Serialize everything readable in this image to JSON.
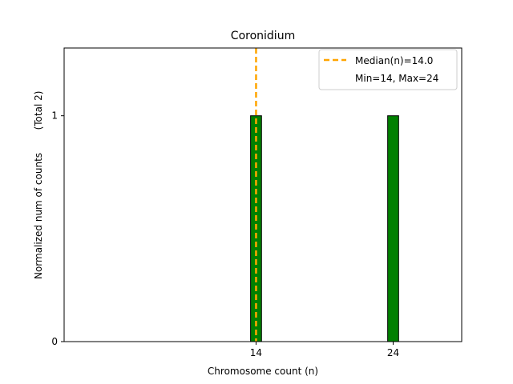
{
  "chart_data": {
    "type": "bar",
    "title": "Coronidium",
    "xlabel": "Chromosome count (n)",
    "ylabel": "Normalized num of counts",
    "ylabel_total": "(Total 2)",
    "x": [
      14,
      24
    ],
    "values": [
      1,
      1
    ],
    "bar_width": 0.8,
    "bar_color": "#008000",
    "bar_edge_color": "#000000",
    "xlim": [
      0,
      29
    ],
    "ylim": [
      0,
      1.3
    ],
    "xticks": [
      14,
      24
    ],
    "yticks": [
      0,
      1
    ],
    "median": 14.0,
    "median_color": "#FFA500",
    "legend": {
      "position": "top-right",
      "entries": [
        "Median(n)=14.0",
        "Min=14, Max=24"
      ]
    }
  }
}
